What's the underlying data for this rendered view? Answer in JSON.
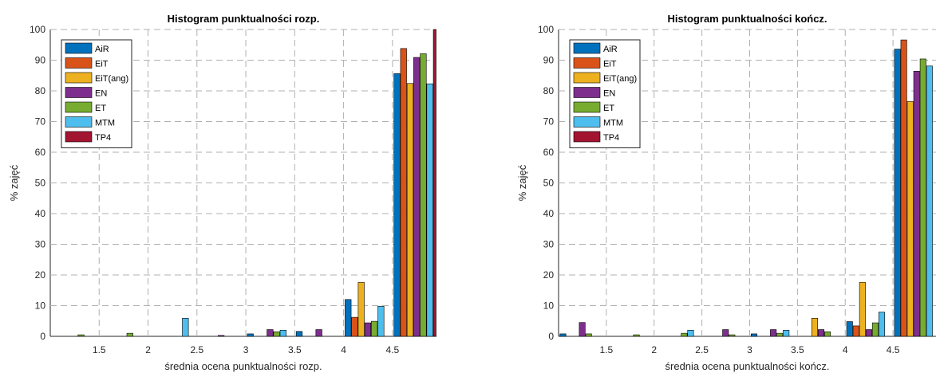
{
  "colors": {
    "AiR": "#0072BD",
    "EiT": "#D95319",
    "EiT(ang)": "#EDB120",
    "EN": "#7E2F8E",
    "ET": "#77AC30",
    "MTM": "#4DBEEE",
    "TP4": "#A2142F"
  },
  "chart_data": [
    {
      "type": "bar",
      "title": "Histogram punktualności rozp.",
      "xlabel": "średnia ocena punktualności rozp.",
      "ylabel": "% zajęć",
      "xlim": [
        1.0,
        4.95
      ],
      "ylim": [
        0,
        100
      ],
      "xticks": [
        1.5,
        2,
        2.5,
        3,
        3.5,
        4,
        4.5
      ],
      "xtick_labels": [
        "1.5",
        "2",
        "2.5",
        "3",
        "3.5",
        "4",
        "4.5"
      ],
      "yticks": [
        0,
        10,
        20,
        30,
        40,
        50,
        60,
        70,
        80,
        90,
        100
      ],
      "grid": true,
      "legend_position": "top-left",
      "bin_width": 0.5,
      "bin_centers": [
        1.25,
        1.75,
        2.25,
        2.75,
        3.25,
        3.75,
        4.25,
        4.75
      ],
      "series": [
        {
          "name": "AiR",
          "values": [
            0,
            0,
            0,
            0,
            0.8,
            1.6,
            12,
            85.6
          ]
        },
        {
          "name": "EiT",
          "values": [
            0,
            0,
            0,
            0,
            0,
            0,
            6.2,
            93.8
          ]
        },
        {
          "name": "EiT(ang)",
          "values": [
            0,
            0,
            0,
            0,
            0,
            0,
            17.6,
            82.4
          ]
        },
        {
          "name": "EN",
          "values": [
            0,
            0,
            0,
            0.3,
            2.2,
            2.2,
            4.4,
            90.9
          ]
        },
        {
          "name": "ET",
          "values": [
            0.5,
            1.0,
            0,
            0,
            1.5,
            0,
            4.9,
            92.1
          ]
        },
        {
          "name": "MTM",
          "values": [
            0,
            0,
            5.9,
            0,
            2.0,
            0,
            9.8,
            82.3
          ]
        },
        {
          "name": "TP4",
          "values": [
            0,
            0,
            0,
            0,
            0,
            0,
            0,
            100
          ]
        }
      ]
    },
    {
      "type": "bar",
      "title": "Histogram punktualności kończ.",
      "xlabel": "średnia ocena punktualności kończ.",
      "ylabel": "% zajęć",
      "xlim": [
        1.0,
        4.95
      ],
      "ylim": [
        0,
        100
      ],
      "xticks": [
        1.5,
        2,
        2.5,
        3,
        3.5,
        4,
        4.5
      ],
      "xtick_labels": [
        "1.5",
        "2",
        "2.5",
        "3",
        "3.5",
        "4",
        "4.5"
      ],
      "yticks": [
        0,
        10,
        20,
        30,
        40,
        50,
        60,
        70,
        80,
        90,
        100
      ],
      "grid": true,
      "legend_position": "top-left",
      "bin_width": 0.5,
      "bin_centers": [
        1.25,
        1.75,
        2.25,
        2.75,
        3.25,
        3.75,
        4.25,
        4.75
      ],
      "series": [
        {
          "name": "AiR",
          "values": [
            0.8,
            0,
            0,
            0,
            0.8,
            0,
            4.8,
            93.6
          ]
        },
        {
          "name": "EiT",
          "values": [
            0,
            0,
            0,
            0,
            0,
            0,
            3.4,
            96.6
          ]
        },
        {
          "name": "EiT(ang)",
          "values": [
            0,
            0,
            0,
            0,
            0,
            5.9,
            17.6,
            76.5
          ]
        },
        {
          "name": "EN",
          "values": [
            4.5,
            0,
            0,
            2.2,
            2.2,
            2.2,
            2.2,
            86.4
          ]
        },
        {
          "name": "ET",
          "values": [
            0.8,
            0.5,
            1.0,
            0.5,
            1.0,
            1.5,
            4.4,
            90.4
          ]
        },
        {
          "name": "MTM",
          "values": [
            0,
            0,
            2.0,
            0,
            2.0,
            0,
            7.9,
            88.1
          ]
        },
        {
          "name": "TP4",
          "values": [
            0,
            0,
            0,
            0,
            0,
            0,
            0,
            0
          ]
        }
      ]
    }
  ]
}
